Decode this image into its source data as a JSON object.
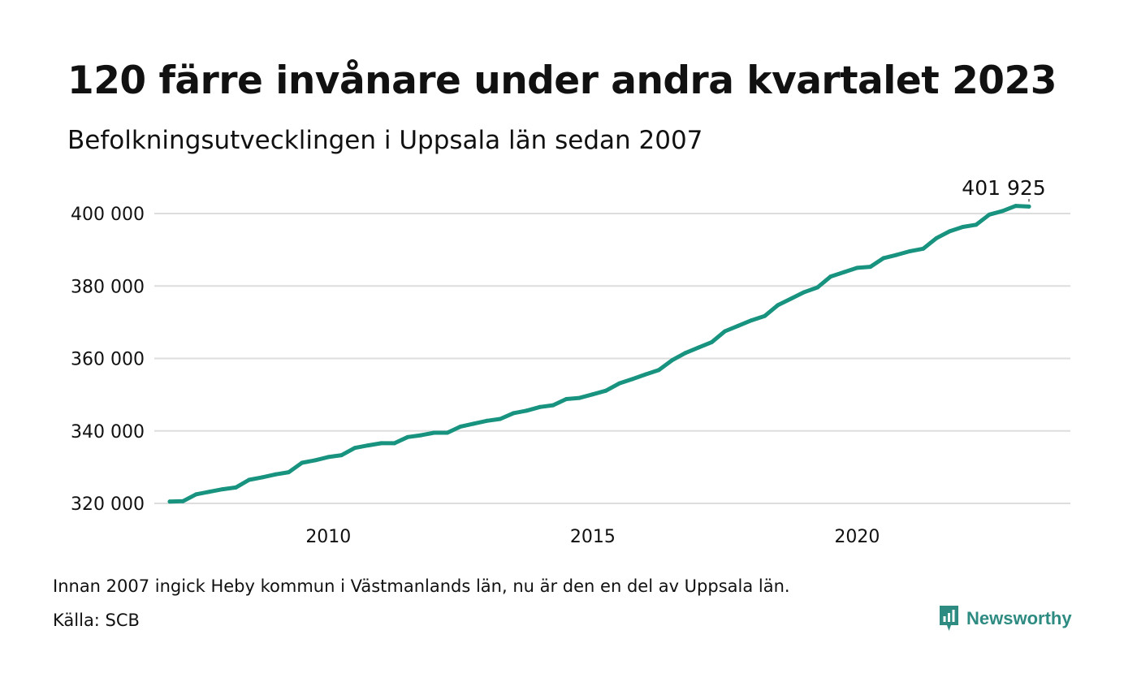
{
  "header": {
    "title": "120 färre invånare under andra kvartalet 2023",
    "subtitle": "Befolkningsutvecklingen i Uppsala län sedan 2007"
  },
  "footer": {
    "note": "Innan 2007 ingick Heby kommun i Västmanlands län, nu är den en del av Uppsala län.",
    "source": "Källa: SCB",
    "brand": "Newsworthy"
  },
  "colors": {
    "line": "#17937f",
    "grid": "#dddddd",
    "brand": "#2e8b82"
  },
  "brand_icon": "newsworthy-logo-icon",
  "chart_data": {
    "type": "line",
    "title": "120 färre invånare under andra kvartalet 2023",
    "subtitle": "Befolkningsutvecklingen i Uppsala län sedan 2007",
    "xlabel": "",
    "ylabel": "",
    "xlim": [
      2007,
      2024
    ],
    "ylim": [
      318000,
      404000
    ],
    "grid": true,
    "legend": "none",
    "x_ticks": [
      2010,
      2015,
      2020
    ],
    "x_tick_labels": [
      "2010",
      "2015",
      "2020"
    ],
    "y_ticks": [
      320000,
      340000,
      360000,
      380000,
      400000
    ],
    "y_tick_labels": [
      "320 000",
      "340 000",
      "360 000",
      "380 000",
      "400 000"
    ],
    "annotation": {
      "text": "401 925",
      "x": 2023.25,
      "y": 401925
    },
    "series": [
      {
        "x": [
          2007.0,
          2007.25,
          2007.5,
          2007.75,
          2008.0,
          2008.25,
          2008.5,
          2008.75,
          2009.0,
          2009.25,
          2009.5,
          2009.75,
          2010.0,
          2010.25,
          2010.5,
          2010.75,
          2011.0,
          2011.25,
          2011.5,
          2011.75,
          2012.0,
          2012.25,
          2012.5,
          2012.75,
          2013.0,
          2013.25,
          2013.5,
          2013.75,
          2014.0,
          2014.25,
          2014.5,
          2014.75,
          2015.0,
          2015.25,
          2015.5,
          2015.75,
          2016.0,
          2016.25,
          2016.5,
          2016.75,
          2017.0,
          2017.25,
          2017.5,
          2017.75,
          2018.0,
          2018.25,
          2018.5,
          2018.75,
          2019.0,
          2019.25,
          2019.5,
          2019.75,
          2020.0,
          2020.25,
          2020.5,
          2020.75,
          2021.0,
          2021.25,
          2021.5,
          2021.75,
          2022.0,
          2022.25,
          2022.5,
          2022.75,
          2023.0,
          2023.25
        ],
        "y": [
          320500,
          320600,
          322500,
          323200,
          323900,
          324400,
          326500,
          327200,
          328000,
          328600,
          331200,
          331900,
          332800,
          333300,
          335300,
          336000,
          336600,
          336600,
          338300,
          338800,
          339500,
          339500,
          341200,
          342000,
          342800,
          343300,
          344900,
          345600,
          346600,
          347100,
          348800,
          349100,
          350100,
          351100,
          353100,
          354300,
          355600,
          356800,
          359500,
          361500,
          363000,
          364500,
          367500,
          369000,
          370500,
          371700,
          374700,
          376500,
          378300,
          379600,
          382600,
          383800,
          385000,
          385300,
          387700,
          388600,
          389600,
          390300,
          393200,
          395100,
          396300,
          396900,
          399700,
          400700,
          402100,
          401925
        ]
      }
    ]
  }
}
